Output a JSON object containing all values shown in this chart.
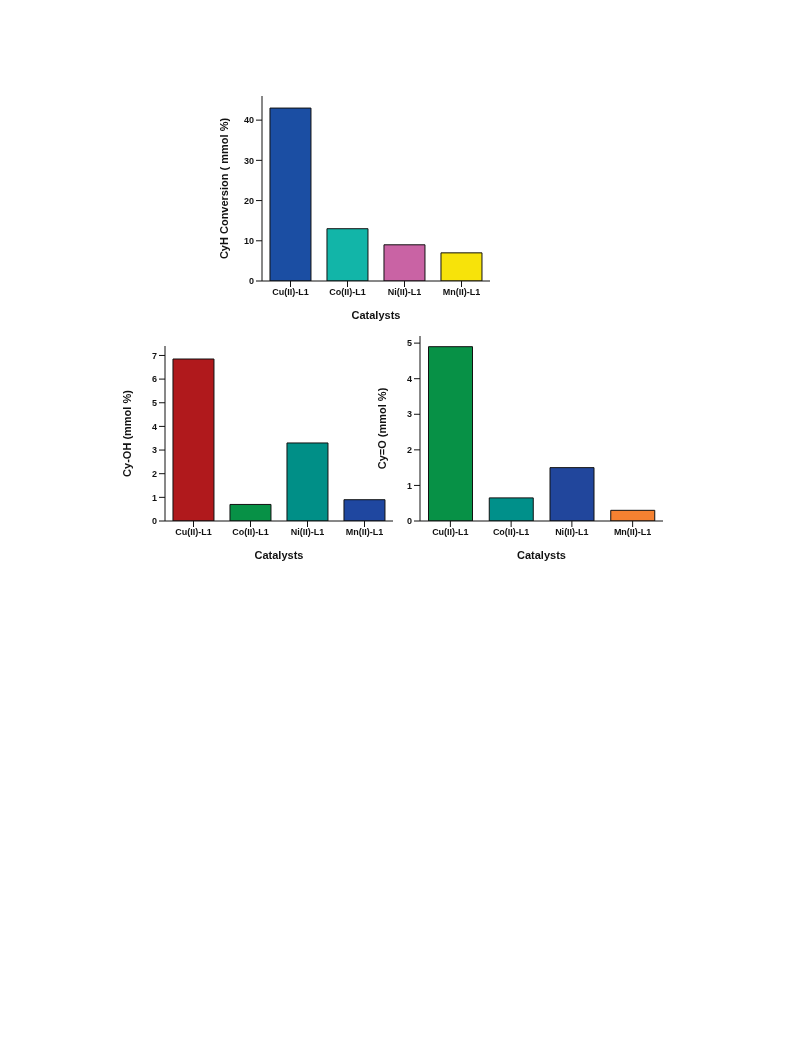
{
  "chart_data": [
    {
      "type": "bar",
      "xlabel": "Catalysts",
      "ylabel": "CyH Conversion ( mmol %)",
      "categories": [
        "Cu(II)-L1",
        "Co(II)-L1",
        "Ni(II)-L1",
        "Mn(II)-L1"
      ],
      "values": [
        43,
        13,
        9,
        7
      ],
      "colors": [
        "#1b4ea3",
        "#12b5a8",
        "#c963a4",
        "#f7e30a"
      ],
      "ylim": [
        0,
        46
      ],
      "yticks": [
        0,
        10,
        20,
        30,
        40
      ],
      "grid": false,
      "legend": false
    },
    {
      "type": "bar",
      "xlabel": "Catalysts",
      "ylabel": "Cy-OH (mmol %)",
      "categories": [
        "Cu(II)-L1",
        "Co(II)-L1",
        "Ni(II)-L1",
        "Mn(II)-L1"
      ],
      "values": [
        6.85,
        0.7,
        3.3,
        0.9
      ],
      "colors": [
        "#b0191c",
        "#079146",
        "#008f87",
        "#1f47a0"
      ],
      "ylim": [
        0,
        7.4
      ],
      "yticks": [
        0,
        1,
        2,
        3,
        4,
        5,
        6,
        7
      ],
      "grid": false,
      "legend": false
    },
    {
      "type": "bar",
      "xlabel": "Catalysts",
      "ylabel": "Cy=O (mmol %)",
      "categories": [
        "Cu(II)-L1",
        "Co(II)-L1",
        "Ni(II)-L1",
        "Mn(II)-L1"
      ],
      "values": [
        4.9,
        0.65,
        1.5,
        0.3
      ],
      "colors": [
        "#079146",
        "#00908a",
        "#21469c",
        "#f58131"
      ],
      "ylim": [
        0,
        5.2
      ],
      "yticks": [
        0,
        1,
        2,
        3,
        4,
        5
      ],
      "grid": false,
      "legend": false
    }
  ]
}
